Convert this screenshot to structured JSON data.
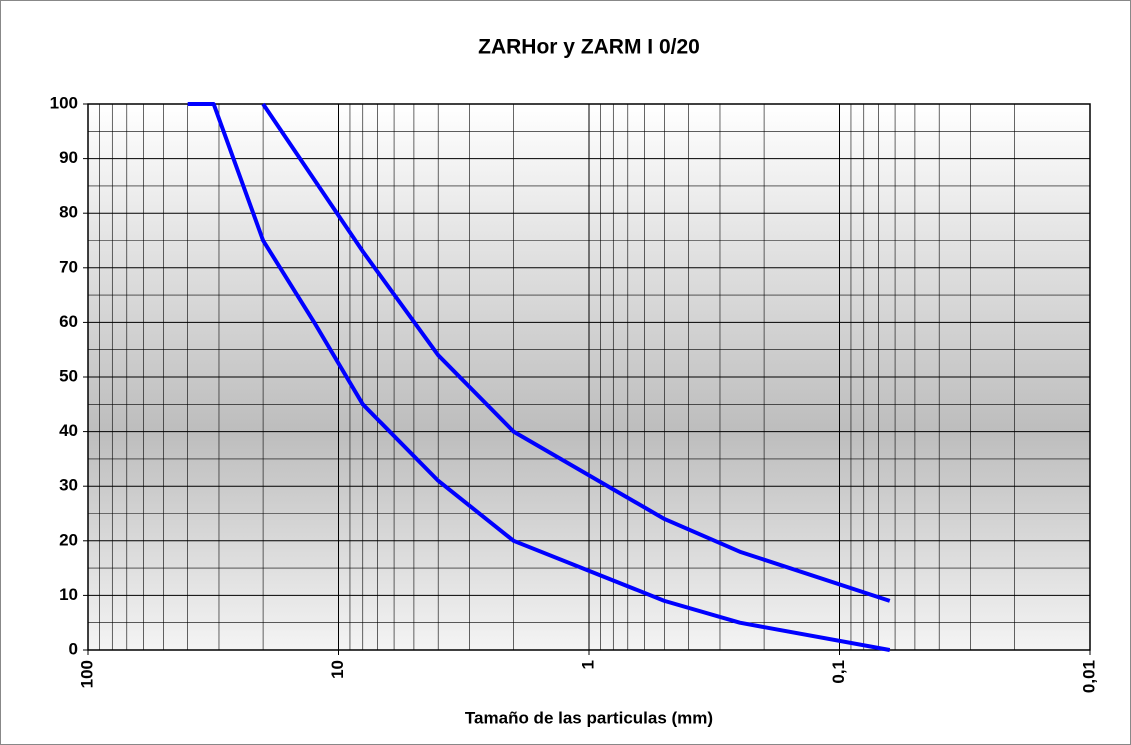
{
  "chart_data": {
    "type": "line",
    "title": "ZARHor y ZARM I 0/20",
    "xlabel": "Tamaño de las particulas (mm)",
    "xscale": "log",
    "xlim": [
      100,
      0.01
    ],
    "xticks": [
      100,
      10,
      1,
      {
        "value": 0.1,
        "label": "0,1"
      },
      {
        "value": 0.01,
        "label": "0,01"
      }
    ],
    "ylim": [
      0,
      100
    ],
    "yticks": [
      0,
      10,
      20,
      30,
      40,
      50,
      60,
      70,
      80,
      90,
      100
    ],
    "grid": true,
    "series": [
      {
        "color": "#0000ff",
        "x": [
          40,
          31.5,
          20,
          12.5,
          8,
          4,
          2,
          0.5,
          0.25,
          0.063
        ],
        "values": [
          100,
          100,
          75,
          60,
          45,
          31,
          20,
          9,
          5,
          0
        ]
      },
      {
        "color": "#0000ff",
        "x": [
          20,
          8,
          4,
          2,
          0.5,
          0.25,
          0.063
        ],
        "values": [
          100,
          73,
          54,
          40,
          24,
          18,
          9
        ]
      }
    ]
  }
}
